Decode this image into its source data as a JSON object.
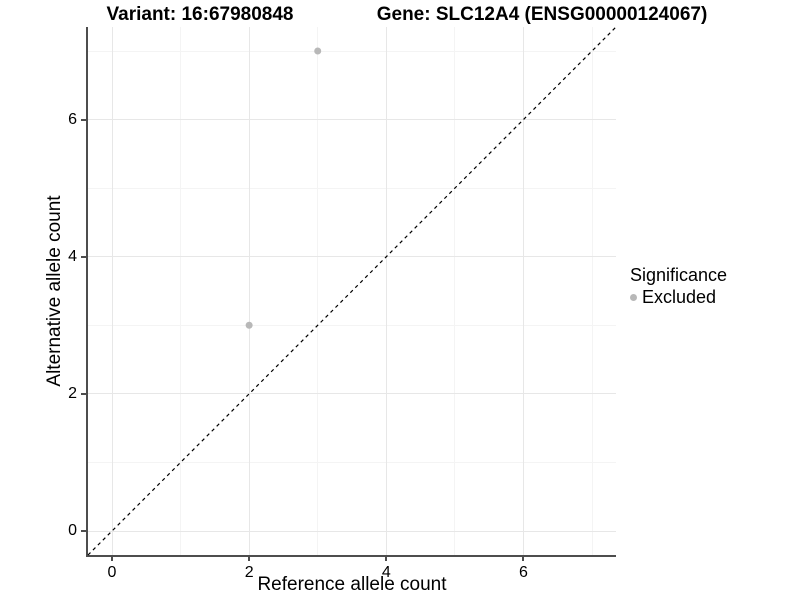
{
  "titles": {
    "left": "Variant: 16:67980848",
    "right": "Gene: SLC12A4 (ENSG00000124067)"
  },
  "chart_data": {
    "type": "scatter",
    "title": "Variant: 16:67980848   Gene: SLC12A4 (ENSG00000124067)",
    "xlabel": "Reference allele count",
    "ylabel": "Alternative allele count",
    "xlim": [
      -0.35,
      7.35
    ],
    "ylim": [
      -0.35,
      7.35
    ],
    "x_major_ticks": [
      0,
      2,
      4,
      6
    ],
    "y_major_ticks": [
      0,
      2,
      4,
      6
    ],
    "x_minor_gridlines": [
      1,
      3,
      5,
      7
    ],
    "y_minor_gridlines": [
      1,
      3,
      5,
      7
    ],
    "grid": "on",
    "reference_line": {
      "style": "dashed",
      "slope": 1,
      "intercept": 0,
      "color": "#000000"
    },
    "series": [
      {
        "name": "Excluded",
        "color": "#b8b8b8",
        "points": [
          [
            2,
            3
          ],
          [
            3,
            7
          ]
        ]
      }
    ],
    "legend": {
      "title": "Significance",
      "position": "right",
      "entries": [
        {
          "label": "Excluded",
          "color": "#b8b8b8"
        }
      ]
    },
    "style": {
      "background": "#ffffff",
      "axis_line": "#4d4d4d",
      "grid_major": "#e7e7e7",
      "grid_minor": "#f4f4f4",
      "text_color": "#000000"
    }
  }
}
